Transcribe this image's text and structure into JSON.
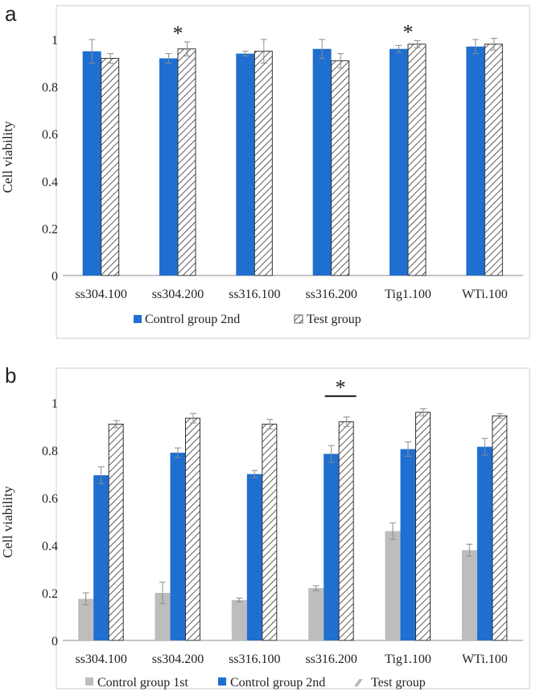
{
  "colors": {
    "control2": "#1f6fd0",
    "control1": "#bdbdbd",
    "test_stroke": "#333333",
    "axis": "#888888",
    "error": "#8c8c8c"
  },
  "chart_data": [
    {
      "type": "bar",
      "panel_label": "a",
      "ylabel": "Cell viability",
      "xlabel": "",
      "ylim": [
        0,
        1
      ],
      "yticks": [
        0,
        0.2,
        0.4,
        0.6,
        0.8,
        1
      ],
      "ytick_labels": [
        "0",
        "0.2",
        "0.4",
        "0.6",
        "0.8",
        "1"
      ],
      "categories": [
        "ss304.100",
        "ss304.200",
        "ss316.100",
        "ss316.200",
        "Tig1.100",
        "WTi.100"
      ],
      "series": [
        {
          "name": "Control group 2nd",
          "style": "control2",
          "values": [
            0.95,
            0.92,
            0.94,
            0.96,
            0.96,
            0.97
          ],
          "errors": [
            0.05,
            0.02,
            0.01,
            0.04,
            0.015,
            0.03
          ]
        },
        {
          "name": "Test group",
          "style": "test",
          "values": [
            0.92,
            0.96,
            0.95,
            0.91,
            0.98,
            0.98
          ],
          "errors": [
            0.02,
            0.03,
            0.05,
            0.03,
            0.015,
            0.025
          ]
        }
      ],
      "significance": [
        {
          "category_index": 1,
          "type": "star",
          "label": "*"
        },
        {
          "category_index": 4,
          "type": "star",
          "label": "*"
        }
      ],
      "legend_position": "bottom"
    },
    {
      "type": "bar",
      "panel_label": "b",
      "ylabel": "Cell viability",
      "xlabel": "",
      "ylim": [
        0,
        1
      ],
      "yticks": [
        0,
        0.2,
        0.4,
        0.6,
        0.8,
        1
      ],
      "ytick_labels": [
        "0",
        "0.2",
        "0.4",
        "0.6",
        "0.8",
        "1"
      ],
      "categories": [
        "ss304.100",
        "ss304.200",
        "ss316.100",
        "ss316.200",
        "Tig1.100",
        "WTi.100"
      ],
      "series": [
        {
          "name": "Control group 1st",
          "style": "control1",
          "values": [
            0.175,
            0.2,
            0.17,
            0.22,
            0.46,
            0.38
          ],
          "errors": [
            0.025,
            0.045,
            0.008,
            0.01,
            0.035,
            0.025
          ]
        },
        {
          "name": "Control group 2nd",
          "style": "control2",
          "values": [
            0.695,
            0.79,
            0.7,
            0.785,
            0.805,
            0.815
          ],
          "errors": [
            0.035,
            0.02,
            0.015,
            0.035,
            0.03,
            0.035
          ]
        },
        {
          "name": "Test group",
          "style": "test",
          "values": [
            0.91,
            0.935,
            0.91,
            0.92,
            0.96,
            0.945
          ],
          "errors": [
            0.015,
            0.02,
            0.02,
            0.02,
            0.015,
            0.01
          ]
        }
      ],
      "significance": [
        {
          "category_index": 3,
          "type": "bracket",
          "label": "*",
          "from_series": 1,
          "to_series": 2
        }
      ],
      "legend_position": "bottom"
    }
  ]
}
